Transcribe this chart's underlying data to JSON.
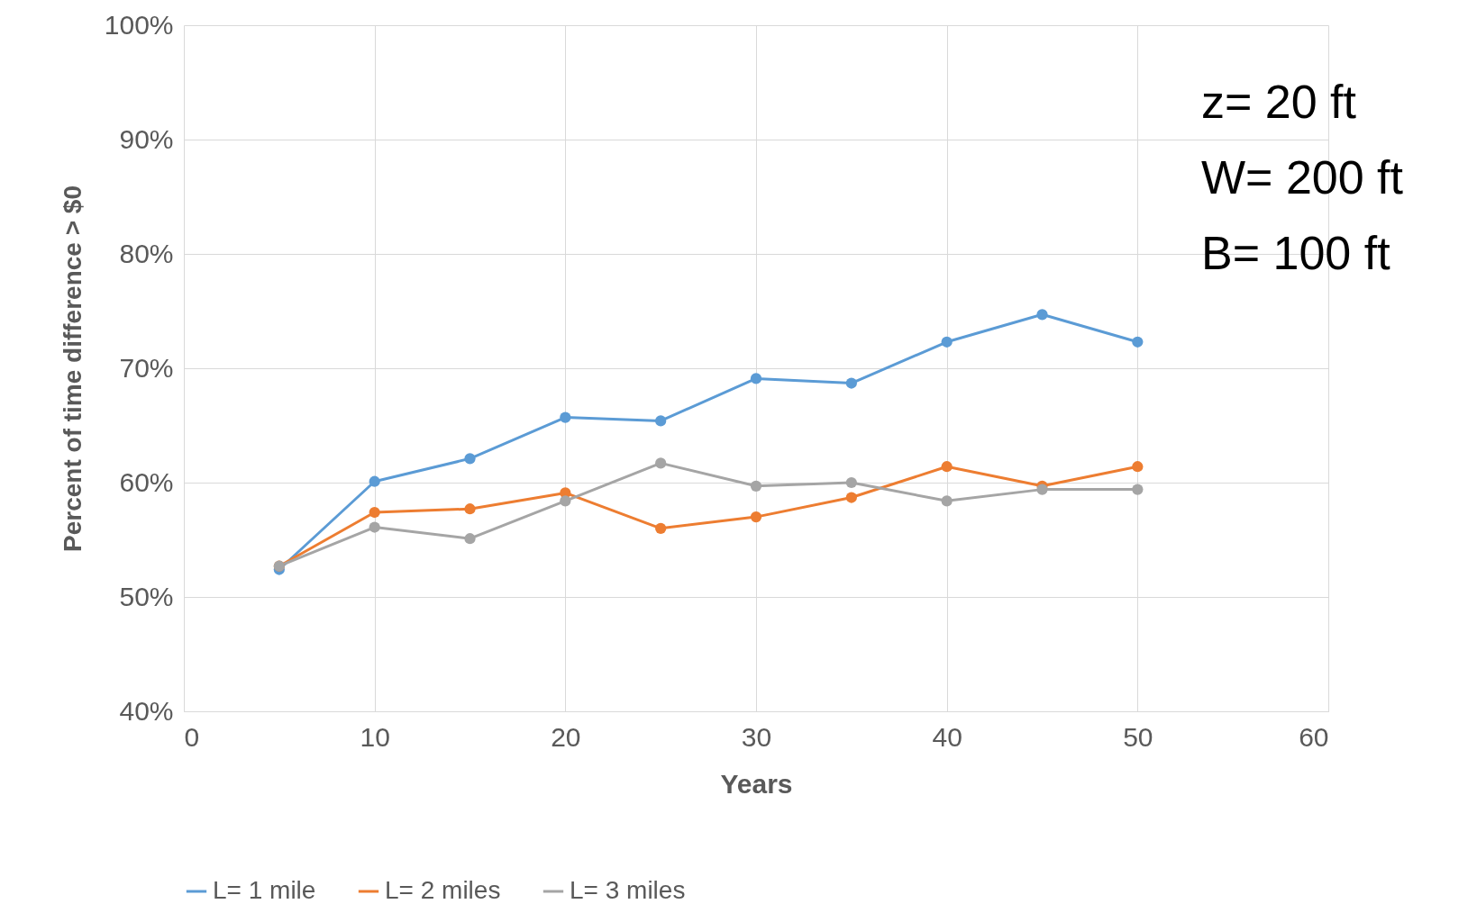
{
  "chart_data": {
    "type": "line",
    "xlabel": "Years",
    "ylabel": "Percent of time difference > $0",
    "annotations": [
      "z= 20 ft",
      "W= 200 ft",
      "B= 100 ft"
    ],
    "x": [
      5,
      10,
      15,
      20,
      25,
      30,
      35,
      40,
      45,
      50
    ],
    "series": [
      {
        "name": "L= 1 mile",
        "color": "#5b9bd5",
        "values": [
          52.4,
          60.1,
          62.1,
          65.7,
          65.4,
          69.1,
          68.7,
          72.3,
          74.7,
          72.3
        ]
      },
      {
        "name": "L= 2 miles",
        "color": "#ed7d31",
        "values": [
          52.7,
          57.4,
          57.7,
          59.1,
          56.0,
          57.0,
          58.7,
          61.4,
          59.7,
          61.4
        ]
      },
      {
        "name": "L= 3 miles",
        "color": "#a5a5a5",
        "values": [
          52.7,
          56.1,
          55.1,
          58.4,
          61.7,
          59.7,
          60.0,
          58.4,
          59.4,
          59.4
        ]
      }
    ],
    "xlim": [
      0,
      60
    ],
    "xticks": [
      0,
      10,
      20,
      30,
      40,
      50,
      60
    ],
    "ylim": [
      40,
      100
    ],
    "yticks": [
      {
        "value": 40,
        "label": "40%"
      },
      {
        "value": 50,
        "label": "50%"
      },
      {
        "value": 60,
        "label": "60%"
      },
      {
        "value": 70,
        "label": "70%"
      },
      {
        "value": 80,
        "label": "80%"
      },
      {
        "value": 90,
        "label": "90%"
      },
      {
        "value": 100,
        "label": "100%"
      }
    ],
    "grid": true,
    "legend": "bottom",
    "marker": "circle"
  }
}
